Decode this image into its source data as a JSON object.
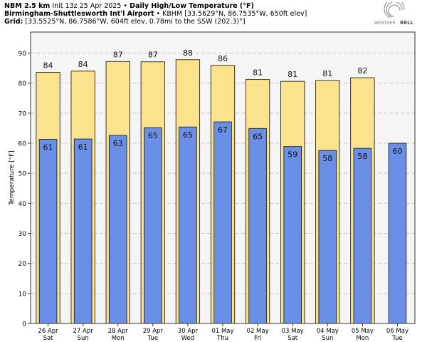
{
  "header": {
    "model": "NBM 2.5 km",
    "init": "Init 13z 25 Apr 2025",
    "bullet": "•",
    "product": "Daily High/Low Temperature (°F)",
    "station_name": "Birmingham-Shuttlesworth Int'l Airport",
    "station_info": "• KBHM [33.5629°N, 86.7535°W, 650ft elev]",
    "grid_label": "Grid:",
    "grid_info": "[33.5525°N, 86.7586°W, 604ft elev, 0.78mi to the SSW (202.3)°]"
  },
  "logo": {
    "text_left": "WEATHER",
    "text_right": "BELL"
  },
  "colors": {
    "high": "#fbe38e",
    "low": "#6a8fe6",
    "plot_bg": "#f5f5f5",
    "grid": "#c8c8c8"
  },
  "chart_data": {
    "type": "bar",
    "title": "",
    "xlabel": "",
    "ylabel": "Temperature [°F]",
    "ylim": [
      0,
      97
    ],
    "yticks": [
      0,
      10,
      20,
      30,
      40,
      50,
      60,
      70,
      80,
      90
    ],
    "grid": "horizontal dashed",
    "categories": [
      [
        "26 Apr",
        "Sat"
      ],
      [
        "27 Apr",
        "Sun"
      ],
      [
        "28 Apr",
        "Mon"
      ],
      [
        "29 Apr",
        "Tue"
      ],
      [
        "30 Apr",
        "Wed"
      ],
      [
        "01 May",
        "Thu"
      ],
      [
        "02 May",
        "Fri"
      ],
      [
        "03 May",
        "Sat"
      ],
      [
        "04 May",
        "Sun"
      ],
      [
        "05 May",
        "Mon"
      ],
      [
        "06 May",
        "Tue"
      ]
    ],
    "series": [
      {
        "values": [
          83.6,
          84.0,
          87.2,
          87.1,
          87.8,
          85.9,
          81.2,
          80.6,
          80.9,
          81.8,
          null
        ],
        "labels": [
          "84",
          "84",
          "87",
          "87",
          "88",
          "86",
          "81",
          "81",
          "81",
          "82",
          null
        ]
      },
      {
        "values": [
          61.3,
          61.4,
          62.6,
          65.2,
          65.4,
          67.1,
          64.9,
          58.9,
          57.6,
          58.3,
          60.0
        ],
        "labels": [
          "61",
          "61",
          "63",
          "65",
          "65",
          "67",
          "65",
          "59",
          "58",
          "58",
          "60"
        ]
      }
    ]
  }
}
